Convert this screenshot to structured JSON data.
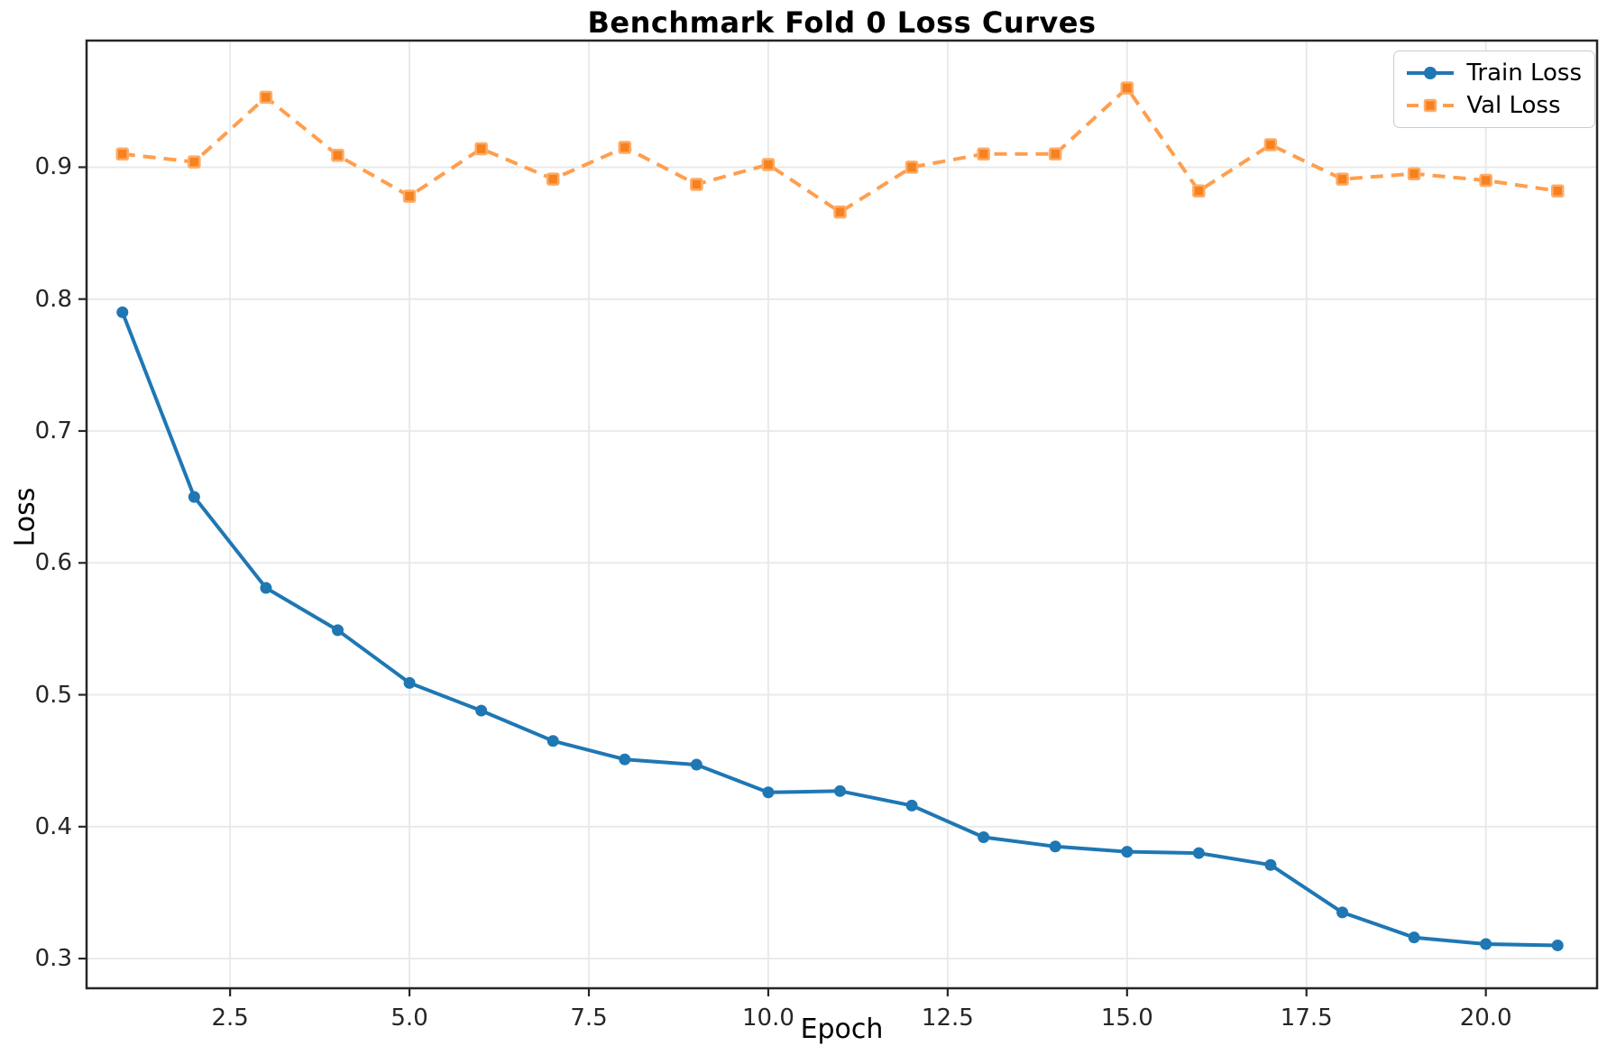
{
  "chart_data": {
    "type": "line",
    "title": "Benchmark Fold 0 Loss Curves",
    "xlabel": "Epoch",
    "ylabel": "Loss",
    "xlim": [
      0.5,
      21.55
    ],
    "ylim": [
      0.2775,
      0.996
    ],
    "grid": true,
    "legend_position": "upper right",
    "x": [
      1,
      2,
      3,
      4,
      5,
      6,
      7,
      8,
      9,
      10,
      11,
      12,
      13,
      14,
      15,
      16,
      17,
      18,
      19,
      20,
      21
    ],
    "xticks": {
      "values": [
        2.5,
        5.0,
        7.5,
        10.0,
        12.5,
        15.0,
        17.5,
        20.0
      ],
      "labels": [
        "2.5",
        "5.0",
        "7.5",
        "10.0",
        "12.5",
        "15.0",
        "17.5",
        "20.0"
      ]
    },
    "yticks": {
      "values": [
        0.3,
        0.4,
        0.5,
        0.6,
        0.7,
        0.8,
        0.9
      ],
      "labels": [
        "0.3",
        "0.4",
        "0.5",
        "0.6",
        "0.7",
        "0.8",
        "0.9"
      ]
    },
    "series": [
      {
        "name": "Train Loss",
        "marker": "circle",
        "line_style": "solid",
        "color": "#1f77b4",
        "marker_fill": "#1f77b4",
        "marker_edge": "#1f77b4",
        "values": [
          0.79,
          0.65,
          0.581,
          0.549,
          0.509,
          0.488,
          0.465,
          0.451,
          0.447,
          0.426,
          0.427,
          0.416,
          0.392,
          0.385,
          0.381,
          0.38,
          0.371,
          0.335,
          0.316,
          0.311,
          0.31
        ]
      },
      {
        "name": "Val Loss",
        "marker": "square",
        "line_style": "dashed",
        "color": "#ff9e4d",
        "marker_fill": "#f5821f",
        "marker_edge": "#ffab66",
        "values": [
          0.91,
          0.904,
          0.953,
          0.909,
          0.878,
          0.914,
          0.891,
          0.915,
          0.887,
          0.902,
          0.866,
          0.9,
          0.91,
          0.91,
          0.96,
          0.882,
          0.917,
          0.891,
          0.895,
          0.89,
          0.882
        ]
      }
    ],
    "style": {
      "grid_color": "#e8e8e8",
      "spine_color": "#262626",
      "background": "#ffffff"
    }
  }
}
